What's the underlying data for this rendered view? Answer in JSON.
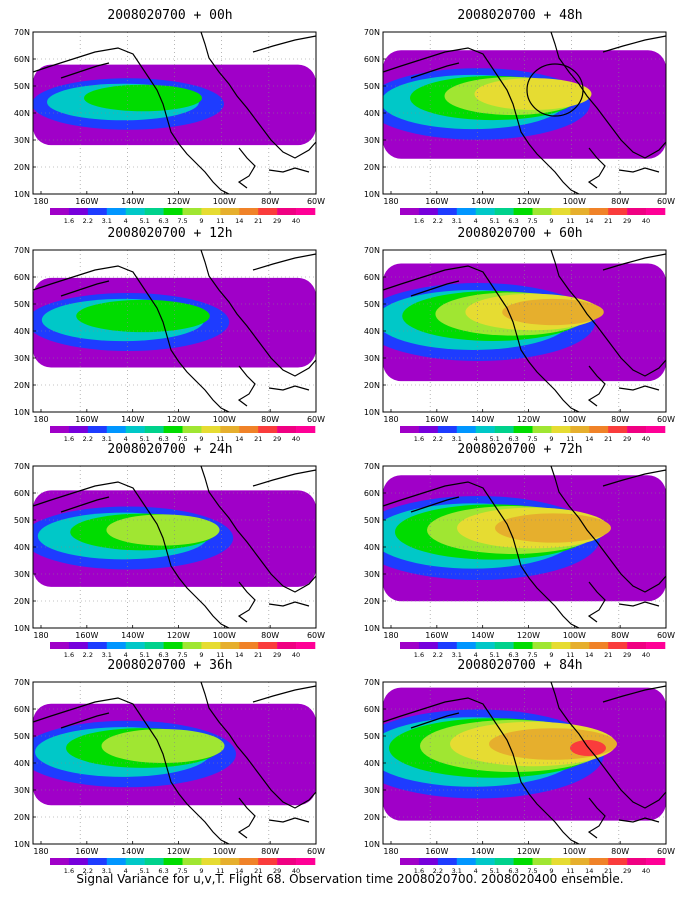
{
  "panels": [
    {
      "title": "2008020700 + 00h",
      "intensity": 0.15
    },
    {
      "title": "2008020700 + 48h",
      "intensity": 0.55,
      "marker": "circle"
    },
    {
      "title": "2008020700 + 12h",
      "intensity": 0.28
    },
    {
      "title": "2008020700 + 60h",
      "intensity": 0.68
    },
    {
      "title": "2008020700 + 24h",
      "intensity": 0.38
    },
    {
      "title": "2008020700 + 72h",
      "intensity": 0.8
    },
    {
      "title": "2008020700 + 36h",
      "intensity": 0.45
    },
    {
      "title": "2008020700 + 84h",
      "intensity": 0.9
    }
  ],
  "axes": {
    "lat_labels": [
      "10N",
      "20N",
      "30N",
      "40N",
      "50N",
      "60N",
      "70N"
    ],
    "lon_labels": [
      "180",
      "160W",
      "140W",
      "120W",
      "100W",
      "80W",
      "60W"
    ]
  },
  "colorbar": {
    "labels": [
      "1.6",
      "2.2",
      "3.1",
      "4",
      "5.1",
      "6.3",
      "7.5",
      "9",
      "11",
      "14",
      "21",
      "29",
      "40"
    ],
    "colors": [
      "#a000c8",
      "#7700dc",
      "#1e3cff",
      "#0096ff",
      "#00c8c8",
      "#00d28c",
      "#00dc00",
      "#a0e632",
      "#e6dc32",
      "#e6af2d",
      "#f08228",
      "#fa3c3c",
      "#f00082",
      "#ff0096"
    ]
  },
  "caption": "Signal Variance for u,v,T. Flight 68. Observation time 2008020700. 2008020400 ensemble."
}
